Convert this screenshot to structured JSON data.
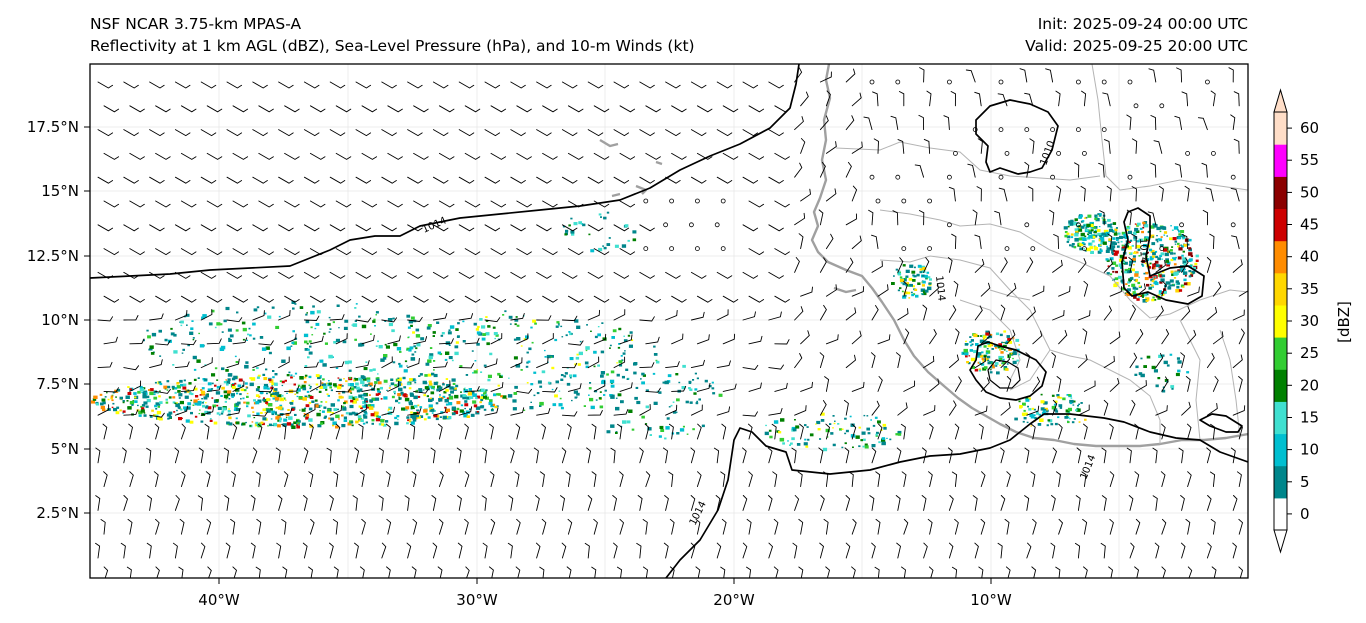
{
  "header": {
    "model_title": "NSF NCAR 3.75-km MPAS-A",
    "fields_title": "Reflectivity at 1 km AGL (dBZ), Sea-Level Pressure (hPa), and 10-m Winds (kt)",
    "init_label": "Init: 2025-09-24 00:00 UTC",
    "valid_label": "Valid: 2025-09-25 20:00 UTC"
  },
  "map": {
    "lon_ticks": [
      "40°W",
      "30°W",
      "20°W",
      "10°W"
    ],
    "lat_ticks": [
      "17.5°N",
      "15°N",
      "12.5°N",
      "10°N",
      "7.5°N",
      "5°N",
      "2.5°N"
    ],
    "contour_labels": [
      "1014",
      "1014",
      "1010",
      "1014",
      "1014",
      "1014"
    ],
    "colors": {
      "coastline": "#a0a0a0",
      "borders": "#b4b4b4",
      "contour": "#000000",
      "barbs": "#000000"
    }
  },
  "colorbar": {
    "label": "[dBZ]",
    "ticks": [
      "0",
      "5",
      "10",
      "15",
      "20",
      "25",
      "30",
      "35",
      "40",
      "45",
      "50",
      "55",
      "60"
    ],
    "colors": [
      "#ffffff",
      "#00868b",
      "#00bfd0",
      "#40e0d0",
      "#008000",
      "#32cd32",
      "#ffff00",
      "#ffd700",
      "#ff8c00",
      "#cd0000",
      "#8b0000",
      "#ff00ff",
      "#ffdec8"
    ]
  }
}
